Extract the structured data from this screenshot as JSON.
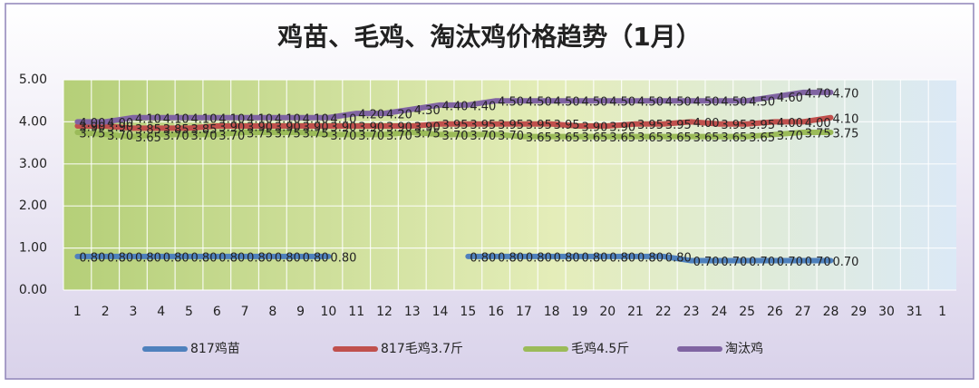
{
  "chart_data": {
    "type": "line",
    "title": "鸡苗、毛鸡、淘汰鸡价格趋势（1月）",
    "categories": [
      "1",
      "2",
      "3",
      "4",
      "5",
      "6",
      "7",
      "8",
      "9",
      "10",
      "11",
      "12",
      "13",
      "14",
      "15",
      "16",
      "17",
      "18",
      "19",
      "20",
      "21",
      "22",
      "23",
      "24",
      "25",
      "26",
      "27",
      "28",
      "29",
      "30",
      "31",
      "1"
    ],
    "ylim": [
      0,
      5
    ],
    "yticks": [
      {
        "value": 0,
        "label": "0.00"
      },
      {
        "value": 1,
        "label": "1.00"
      },
      {
        "value": 2,
        "label": "2.00"
      },
      {
        "value": 3,
        "label": "3.00"
      },
      {
        "value": 4,
        "label": "4.00"
      },
      {
        "value": 5,
        "label": "5.00"
      }
    ],
    "grid": true,
    "legend": "bottom",
    "series": [
      {
        "name": "817鸡苗",
        "color": "#4f81bd",
        "values": [
          0.8,
          0.8,
          0.8,
          0.8,
          0.8,
          0.8,
          0.8,
          0.8,
          0.8,
          0.8,
          null,
          null,
          null,
          null,
          0.8,
          0.8,
          0.8,
          0.8,
          0.8,
          0.8,
          0.8,
          0.8,
          0.7,
          0.7,
          0.7,
          0.7,
          0.7,
          0.7,
          null,
          null,
          null,
          null
        ],
        "value_labels": [
          "0.80",
          "0.80",
          "0.80",
          "0.80",
          "0.80",
          "0.80",
          "0.80",
          "0.80",
          "0.80",
          "0.80",
          null,
          null,
          null,
          null,
          "0.80",
          "0.80",
          "0.80",
          "0.80",
          "0.80",
          "0.80",
          "0.80",
          "0.80",
          "0.70",
          "0.70",
          "0.70",
          "0.70",
          "0.70",
          "0.70",
          null,
          null,
          null,
          null
        ]
      },
      {
        "name": "817毛鸡3.7斤",
        "color": "#c0504d",
        "values": [
          3.9,
          3.9,
          3.85,
          3.85,
          3.85,
          3.9,
          3.9,
          3.9,
          3.9,
          3.9,
          3.9,
          3.9,
          3.9,
          3.95,
          3.95,
          3.95,
          3.95,
          3.95,
          3.9,
          3.9,
          3.95,
          3.95,
          4.0,
          3.95,
          3.95,
          4.0,
          4.0,
          4.1,
          null,
          null,
          null,
          null
        ],
        "value_labels": [
          "3.90",
          "3.90",
          "3.85",
          "3.85",
          "3.85",
          "3.90",
          "3.90",
          "3.90",
          "3.90",
          "3.90",
          "3.90",
          "3.90",
          "3.90",
          "3.95",
          "3.95",
          "3.95",
          "3.95",
          "3.95",
          "3.90",
          "3.90",
          "3.95",
          "3.95",
          "4.00",
          "3.95",
          "3.95",
          "4.00",
          "4.00",
          "4.10",
          null,
          null,
          null,
          null
        ]
      },
      {
        "name": "毛鸡4.5斤",
        "color": "#9bbb59",
        "values": [
          3.75,
          3.7,
          3.65,
          3.7,
          3.7,
          3.7,
          3.75,
          3.75,
          3.75,
          3.7,
          3.7,
          3.7,
          3.75,
          3.7,
          3.7,
          3.7,
          3.65,
          3.65,
          3.65,
          3.65,
          3.65,
          3.65,
          3.65,
          3.65,
          3.65,
          3.7,
          3.75,
          3.75,
          null,
          null,
          null,
          null
        ],
        "value_labels": [
          "3.75",
          "3.70",
          "3.65",
          "3.70",
          "3.70",
          "3.70",
          "3.75",
          "3.75",
          "3.75",
          "3.70",
          "3.70",
          "3.70",
          "3.75",
          "3.70",
          "3.70",
          "3.70",
          "3.65",
          "3.65",
          "3.65",
          "3.65",
          "3.65",
          "3.65",
          "3.65",
          "3.65",
          "3.65",
          "3.70",
          "3.75",
          "3.75",
          null,
          null,
          null,
          null
        ]
      },
      {
        "name": "淘汰鸡",
        "color": "#8064a2",
        "values": [
          4.0,
          4.0,
          4.1,
          4.1,
          4.1,
          4.1,
          4.1,
          4.1,
          4.1,
          4.1,
          4.2,
          4.2,
          4.3,
          4.4,
          4.4,
          4.5,
          4.5,
          4.5,
          4.5,
          4.5,
          4.5,
          4.5,
          4.5,
          4.5,
          4.5,
          4.6,
          4.7,
          4.7,
          null,
          null,
          null,
          null
        ],
        "value_labels": [
          "4.00",
          "4.00",
          "4.10",
          "4.10",
          "4.10",
          "4.10",
          "4.10",
          "4.10",
          "4.10",
          "4.10",
          "4.20",
          "4.20",
          "4.30",
          "4.40",
          "4.40",
          "4.50",
          "4.50",
          "4.50",
          "4.50",
          "4.50",
          "4.50",
          "4.50",
          "4.50",
          "4.50",
          "4.50",
          "4.60",
          "4.70",
          "4.70",
          null,
          null,
          null,
          null
        ]
      }
    ]
  }
}
